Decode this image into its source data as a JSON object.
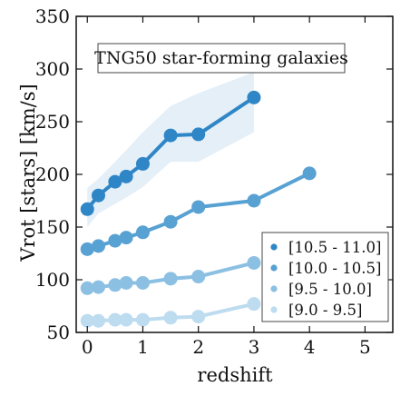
{
  "chart_data": {
    "type": "line",
    "title": "TNG50 star-forming galaxies",
    "xlabel": "redshift",
    "ylabel": "Vrot [stars] [km/s]",
    "xlim": [
      -0.2,
      5.5
    ],
    "ylim": [
      50,
      350
    ],
    "xticks": [
      0,
      1,
      2,
      3,
      4,
      5
    ],
    "yticks": [
      50,
      100,
      150,
      200,
      250,
      300,
      350
    ],
    "grid": false,
    "legend_position": "bottom-right",
    "series": [
      {
        "name": "[10.5 - 11.0]",
        "color": "#2f86c6",
        "x": [
          0,
          0.2,
          0.5,
          0.7,
          1.0,
          1.5,
          2.0,
          3.0
        ],
        "y": [
          167,
          180,
          193,
          198,
          210,
          237,
          238,
          273
        ],
        "band_upper": [
          187,
          196,
          212,
          223,
          240,
          265,
          277,
          297
        ],
        "band_lower": [
          150,
          163,
          172,
          178,
          188,
          212,
          212,
          240
        ]
      },
      {
        "name": "[10.0 - 10.5]",
        "color": "#58a1d3",
        "x": [
          0,
          0.2,
          0.5,
          0.7,
          1.0,
          1.5,
          2.0,
          3.0,
          4.0
        ],
        "y": [
          129,
          132,
          137,
          140,
          145,
          155,
          169,
          175,
          201
        ]
      },
      {
        "name": "[9.5 - 10.0]",
        "color": "#8cc0e3",
        "x": [
          0,
          0.2,
          0.5,
          0.7,
          1.0,
          1.5,
          2.0,
          3.0
        ],
        "y": [
          92,
          93,
          95,
          97,
          97,
          101,
          103,
          116
        ]
      },
      {
        "name": "[9.0 - 9.5]",
        "color": "#bddcf0",
        "x": [
          0,
          0.2,
          0.5,
          0.7,
          1.0,
          1.5,
          2.0,
          3.0
        ],
        "y": [
          61,
          61,
          62,
          62,
          62,
          64,
          65,
          77
        ]
      }
    ]
  }
}
